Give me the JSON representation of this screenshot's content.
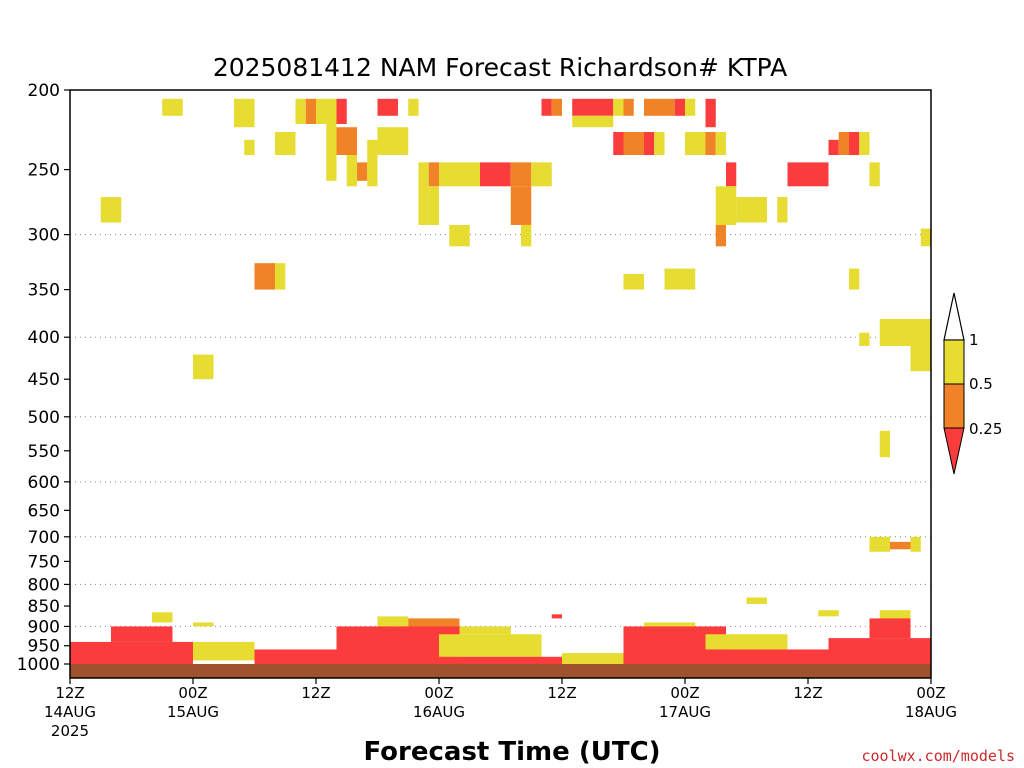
{
  "chart_data": {
    "type": "heatmap",
    "title": "2025081412 NAM Forecast Richardson# KTPA",
    "xlabel": "Forecast Time (UTC)",
    "ylabel": "",
    "credit": "coolwx.com/models",
    "x_range_hours": [
      0,
      84
    ],
    "y_range_hpa": [
      1000,
      200
    ],
    "y_scale": "log-pressure",
    "y_ticks": [
      200,
      250,
      300,
      350,
      400,
      450,
      500,
      550,
      600,
      650,
      700,
      750,
      800,
      850,
      900,
      950,
      1000
    ],
    "y_gridlines": [
      300,
      400,
      500,
      600,
      700,
      800,
      900
    ],
    "x_ticks": [
      {
        "hour": 0,
        "lines": [
          "12Z",
          "14AUG",
          "2025"
        ]
      },
      {
        "hour": 12,
        "lines": [
          "00Z",
          "15AUG"
        ]
      },
      {
        "hour": 24,
        "lines": [
          "12Z"
        ]
      },
      {
        "hour": 36,
        "lines": [
          "00Z",
          "16AUG"
        ]
      },
      {
        "hour": 48,
        "lines": [
          "12Z"
        ]
      },
      {
        "hour": 60,
        "lines": [
          "00Z",
          "17AUG"
        ]
      },
      {
        "hour": 72,
        "lines": [
          "12Z"
        ]
      },
      {
        "hour": 84,
        "lines": [
          "00Z",
          "18AUG"
        ]
      }
    ],
    "legend": {
      "placement": "right",
      "tick_labels": [
        "1",
        "0.5",
        "0.25"
      ],
      "bins": [
        {
          "range": "0.5-1",
          "color": "#e6dc32"
        },
        {
          "range": "0.25-0.5",
          "color": "#f08228"
        },
        {
          "range": "<0.25",
          "color": "#fa3c3c"
        }
      ]
    },
    "colors": {
      "yellow": "#e6dc32",
      "orange": "#f08228",
      "red": "#fa3c3c",
      "ground": "#a0522d"
    },
    "cells": [
      {
        "t": [
          9,
          11
        ],
        "p": [
          205,
          215
        ],
        "c": "y"
      },
      {
        "t": [
          16,
          18
        ],
        "p": [
          205,
          222
        ],
        "c": "y"
      },
      {
        "t": [
          17,
          18
        ],
        "p": [
          230,
          240
        ],
        "c": "y"
      },
      {
        "t": [
          20,
          22
        ],
        "p": [
          225,
          240
        ],
        "c": "y"
      },
      {
        "t": [
          22,
          23
        ],
        "p": [
          205,
          220
        ],
        "c": "y"
      },
      {
        "t": [
          23,
          24
        ],
        "p": [
          205,
          220
        ],
        "c": "o"
      },
      {
        "t": [
          24,
          26
        ],
        "p": [
          205,
          220
        ],
        "c": "y"
      },
      {
        "t": [
          25,
          26
        ],
        "p": [
          220,
          258
        ],
        "c": "y"
      },
      {
        "t": [
          26,
          27
        ],
        "p": [
          205,
          220
        ],
        "c": "r"
      },
      {
        "t": [
          26,
          28
        ],
        "p": [
          222,
          240
        ],
        "c": "o"
      },
      {
        "t": [
          27,
          28
        ],
        "p": [
          240,
          262
        ],
        "c": "y"
      },
      {
        "t": [
          28,
          29
        ],
        "p": [
          245,
          258
        ],
        "c": "o"
      },
      {
        "t": [
          29,
          30
        ],
        "p": [
          230,
          262
        ],
        "c": "y"
      },
      {
        "t": [
          30,
          32
        ],
        "p": [
          205,
          215
        ],
        "c": "r"
      },
      {
        "t": [
          30,
          33
        ],
        "p": [
          222,
          240
        ],
        "c": "y"
      },
      {
        "t": [
          33,
          34
        ],
        "p": [
          205,
          215
        ],
        "c": "y"
      },
      {
        "t": [
          34,
          35
        ],
        "p": [
          245,
          292
        ],
        "c": "y"
      },
      {
        "t": [
          35,
          36
        ],
        "p": [
          245,
          262
        ],
        "c": "o"
      },
      {
        "t": [
          36,
          40
        ],
        "p": [
          245,
          262
        ],
        "c": "y"
      },
      {
        "t": [
          40,
          43
        ],
        "p": [
          245,
          262
        ],
        "c": "r"
      },
      {
        "t": [
          43,
          45
        ],
        "p": [
          245,
          262
        ],
        "c": "o"
      },
      {
        "t": [
          45,
          47
        ],
        "p": [
          245,
          262
        ],
        "c": "y"
      },
      {
        "t": [
          35,
          36
        ],
        "p": [
          262,
          292
        ],
        "c": "y"
      },
      {
        "t": [
          37,
          39
        ],
        "p": [
          292,
          310
        ],
        "c": "y"
      },
      {
        "t": [
          43,
          45
        ],
        "p": [
          262,
          292
        ],
        "c": "o"
      },
      {
        "t": [
          44,
          45
        ],
        "p": [
          292,
          310
        ],
        "c": "y"
      },
      {
        "t": [
          46,
          47
        ],
        "p": [
          205,
          215
        ],
        "c": "r"
      },
      {
        "t": [
          47,
          48
        ],
        "p": [
          205,
          215
        ],
        "c": "o"
      },
      {
        "t": [
          49,
          53
        ],
        "p": [
          205,
          215
        ],
        "c": "r"
      },
      {
        "t": [
          49,
          53
        ],
        "p": [
          215,
          222
        ],
        "c": "y"
      },
      {
        "t": [
          53,
          54
        ],
        "p": [
          205,
          215
        ],
        "c": "y"
      },
      {
        "t": [
          54,
          55
        ],
        "p": [
          205,
          215
        ],
        "c": "o"
      },
      {
        "t": [
          56,
          59
        ],
        "p": [
          205,
          215
        ],
        "c": "o"
      },
      {
        "t": [
          59,
          60
        ],
        "p": [
          205,
          215
        ],
        "c": "r"
      },
      {
        "t": [
          60,
          61
        ],
        "p": [
          205,
          215
        ],
        "c": "y"
      },
      {
        "t": [
          53,
          54
        ],
        "p": [
          225,
          240
        ],
        "c": "r"
      },
      {
        "t": [
          54,
          56
        ],
        "p": [
          225,
          240
        ],
        "c": "o"
      },
      {
        "t": [
          56,
          57
        ],
        "p": [
          225,
          240
        ],
        "c": "r"
      },
      {
        "t": [
          57,
          58
        ],
        "p": [
          225,
          240
        ],
        "c": "y"
      },
      {
        "t": [
          60,
          62
        ],
        "p": [
          225,
          240
        ],
        "c": "y"
      },
      {
        "t": [
          62,
          63
        ],
        "p": [
          205,
          222
        ],
        "c": "r"
      },
      {
        "t": [
          62,
          63
        ],
        "p": [
          225,
          240
        ],
        "c": "o"
      },
      {
        "t": [
          63,
          64
        ],
        "p": [
          225,
          240
        ],
        "c": "y"
      },
      {
        "t": [
          64,
          65
        ],
        "p": [
          245,
          262
        ],
        "c": "r"
      },
      {
        "t": [
          63,
          65
        ],
        "p": [
          262,
          292
        ],
        "c": "y"
      },
      {
        "t": [
          65,
          68
        ],
        "p": [
          270,
          290
        ],
        "c": "y"
      },
      {
        "t": [
          69,
          70
        ],
        "p": [
          270,
          290
        ],
        "c": "y"
      },
      {
        "t": [
          70,
          74
        ],
        "p": [
          245,
          262
        ],
        "c": "r"
      },
      {
        "t": [
          74,
          75
        ],
        "p": [
          230,
          240
        ],
        "c": "r"
      },
      {
        "t": [
          75,
          76
        ],
        "p": [
          225,
          240
        ],
        "c": "o"
      },
      {
        "t": [
          76,
          77
        ],
        "p": [
          225,
          240
        ],
        "c": "r"
      },
      {
        "t": [
          77,
          78
        ],
        "p": [
          225,
          240
        ],
        "c": "y"
      },
      {
        "t": [
          78,
          79
        ],
        "p": [
          245,
          262
        ],
        "c": "y"
      },
      {
        "t": [
          63,
          64
        ],
        "p": [
          292,
          310
        ],
        "c": "o"
      },
      {
        "t": [
          54,
          56
        ],
        "p": [
          335,
          350
        ],
        "c": "y"
      },
      {
        "t": [
          58,
          61
        ],
        "p": [
          330,
          350
        ],
        "c": "y"
      },
      {
        "t": [
          18,
          20
        ],
        "p": [
          325,
          350
        ],
        "c": "o"
      },
      {
        "t": [
          20,
          21
        ],
        "p": [
          325,
          350
        ],
        "c": "y"
      },
      {
        "t": [
          3,
          5
        ],
        "p": [
          270,
          290
        ],
        "c": "y"
      },
      {
        "t": [
          12,
          14
        ],
        "p": [
          420,
          450
        ],
        "c": "y"
      },
      {
        "t": [
          76,
          77
        ],
        "p": [
          330,
          350
        ],
        "c": "y"
      },
      {
        "t": [
          77,
          78
        ],
        "p": [
          395,
          410
        ],
        "c": "y"
      },
      {
        "t": [
          79,
          84
        ],
        "p": [
          380,
          410
        ],
        "c": "y"
      },
      {
        "t": [
          83,
          84
        ],
        "p": [
          295,
          310
        ],
        "c": "y"
      },
      {
        "t": [
          82,
          84
        ],
        "p": [
          410,
          440
        ],
        "c": "y"
      },
      {
        "t": [
          79,
          80
        ],
        "p": [
          520,
          560
        ],
        "c": "y"
      },
      {
        "t": [
          78,
          80
        ],
        "p": [
          700,
          730
        ],
        "c": "y"
      },
      {
        "t": [
          80,
          82
        ],
        "p": [
          710,
          725
        ],
        "c": "o"
      },
      {
        "t": [
          82,
          83
        ],
        "p": [
          700,
          730
        ],
        "c": "y"
      },
      {
        "t": [
          8,
          10
        ],
        "p": [
          865,
          890
        ],
        "c": "y"
      },
      {
        "t": [
          12,
          14
        ],
        "p": [
          890,
          900
        ],
        "c": "y"
      },
      {
        "t": [
          30,
          33
        ],
        "p": [
          875,
          900
        ],
        "c": "y"
      },
      {
        "t": [
          33,
          38
        ],
        "p": [
          880,
          910
        ],
        "c": "o"
      },
      {
        "t": [
          38,
          43
        ],
        "p": [
          900,
          920
        ],
        "c": "y"
      },
      {
        "t": [
          47,
          48
        ],
        "p": [
          870,
          880
        ],
        "c": "r"
      },
      {
        "t": [
          56,
          61
        ],
        "p": [
          890,
          910
        ],
        "c": "y"
      },
      {
        "t": [
          66,
          68
        ],
        "p": [
          830,
          845
        ],
        "c": "y"
      },
      {
        "t": [
          73,
          75
        ],
        "p": [
          860,
          875
        ],
        "c": "y"
      },
      {
        "t": [
          79,
          82
        ],
        "p": [
          860,
          900
        ],
        "c": "y"
      },
      {
        "t": [
          0,
          12
        ],
        "p": [
          940,
          1000
        ],
        "c": "r"
      },
      {
        "t": [
          4,
          10
        ],
        "p": [
          900,
          940
        ],
        "c": "r"
      },
      {
        "t": [
          12,
          18
        ],
        "p": [
          940,
          990
        ],
        "c": "y"
      },
      {
        "t": [
          18,
          26
        ],
        "p": [
          960,
          1000
        ],
        "c": "r"
      },
      {
        "t": [
          26,
          38
        ],
        "p": [
          900,
          1000
        ],
        "c": "r"
      },
      {
        "t": [
          36,
          46
        ],
        "p": [
          920,
          980
        ],
        "c": "y"
      },
      {
        "t": [
          38,
          48
        ],
        "p": [
          980,
          1000
        ],
        "c": "r"
      },
      {
        "t": [
          48,
          54
        ],
        "p": [
          970,
          1000
        ],
        "c": "y"
      },
      {
        "t": [
          54,
          64
        ],
        "p": [
          900,
          1000
        ],
        "c": "r"
      },
      {
        "t": [
          62,
          70
        ],
        "p": [
          920,
          960
        ],
        "c": "y"
      },
      {
        "t": [
          64,
          74
        ],
        "p": [
          960,
          1000
        ],
        "c": "r"
      },
      {
        "t": [
          74,
          84
        ],
        "p": [
          930,
          1000
        ],
        "c": "r"
      },
      {
        "t": [
          78,
          82
        ],
        "p": [
          880,
          930
        ],
        "c": "r"
      }
    ]
  }
}
